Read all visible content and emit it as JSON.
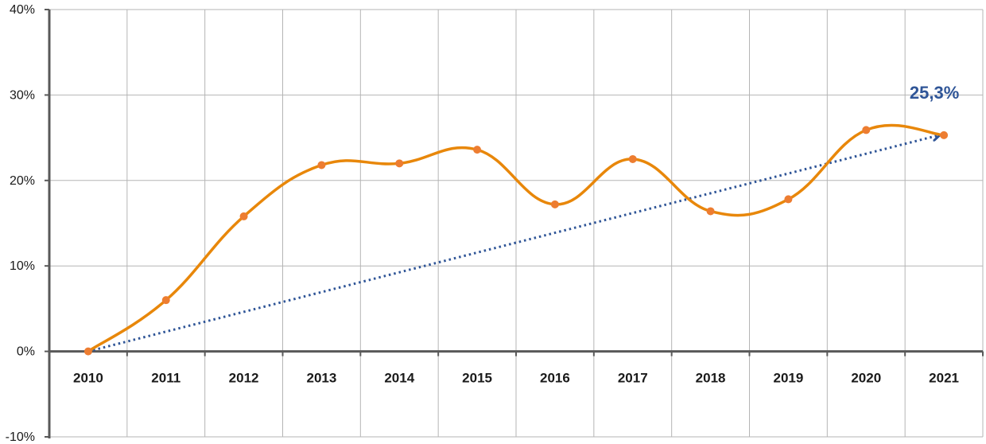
{
  "chart_data": {
    "type": "line",
    "categories": [
      "2010",
      "2011",
      "2012",
      "2013",
      "2014",
      "2015",
      "2016",
      "2017",
      "2018",
      "2019",
      "2020",
      "2021"
    ],
    "series": [
      {
        "values": [
          0.0,
          6.0,
          15.8,
          21.8,
          22.0,
          23.6,
          17.2,
          22.5,
          16.4,
          17.8,
          25.9,
          25.3
        ],
        "color": "#E8870A",
        "marker_color": "#ED7D31",
        "smooth": true
      }
    ],
    "trend_arrow": {
      "from": [
        "2010",
        0.0
      ],
      "to": [
        "2021",
        25.3
      ],
      "color": "#2F5597",
      "style": "dotted"
    },
    "annotation": {
      "text": "25,3%",
      "color": "#2F5597"
    },
    "y_ticks": [
      "40%",
      "30%",
      "20%",
      "10%",
      "0%",
      "-10%"
    ],
    "y_tick_values": [
      40,
      30,
      20,
      10,
      0,
      -10
    ],
    "ylim": [
      -10,
      40
    ],
    "grid": true,
    "title": "",
    "xlabel": "",
    "ylabel": ""
  }
}
